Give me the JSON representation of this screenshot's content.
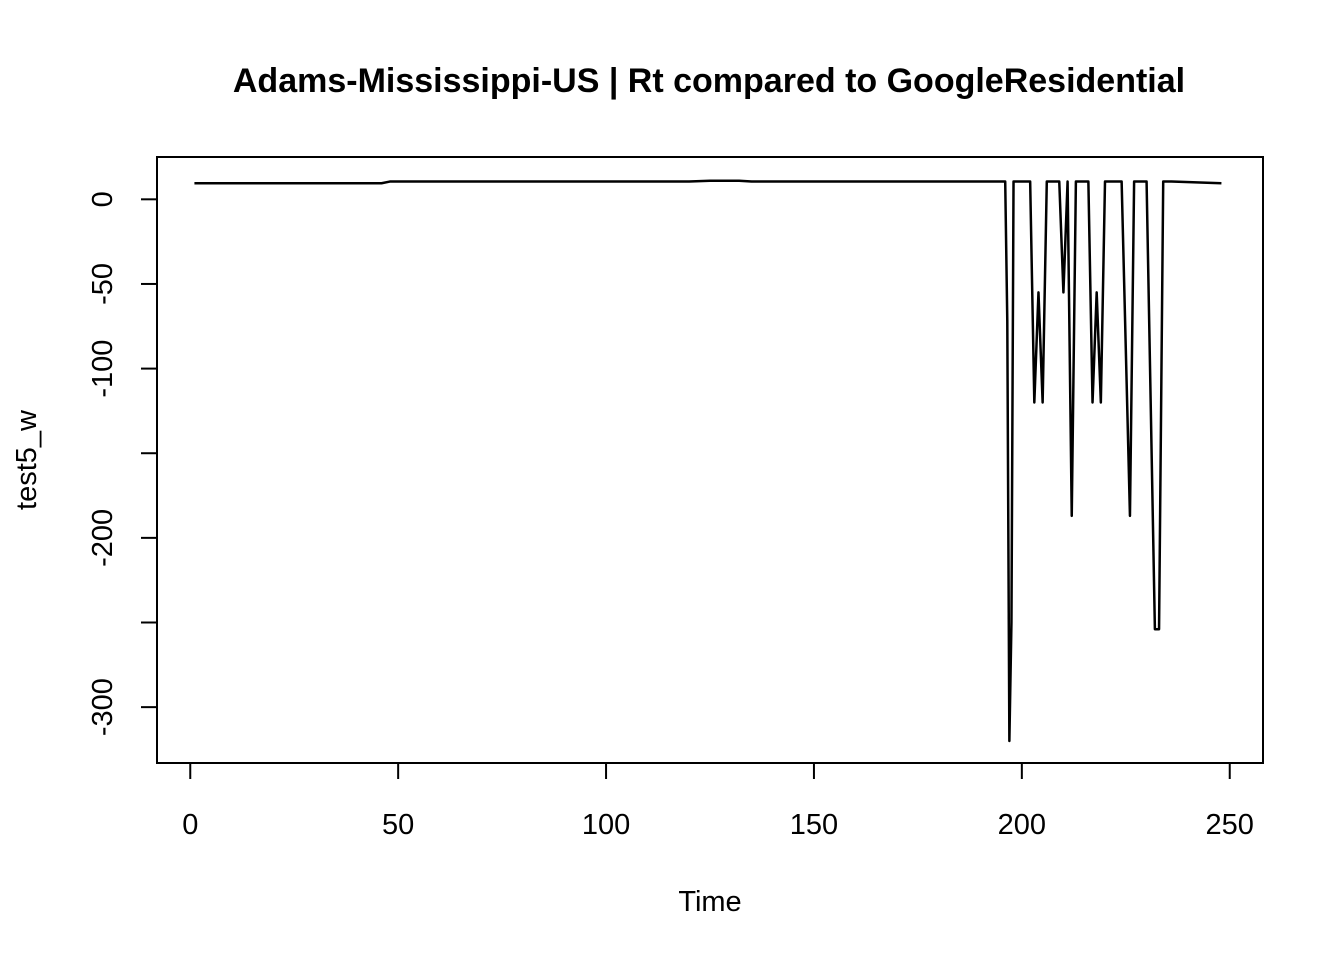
{
  "chart_data": {
    "type": "line",
    "title": "Adams-Mississippi-US | Rt compared to GoogleResidential",
    "xlabel": "Time",
    "ylabel": "test5_w",
    "xlim": [
      -8,
      258
    ],
    "ylim": [
      -333,
      25
    ],
    "xticks": [
      0,
      50,
      100,
      150,
      200,
      250
    ],
    "yticks": [
      0,
      -50,
      -100,
      -150,
      -200,
      -250,
      -300
    ],
    "ytick_labels": [
      "0",
      "-50",
      "-100",
      "",
      "-200",
      "",
      "-300"
    ],
    "grid": false,
    "legend": "none",
    "line_color": "#000000",
    "series": [
      {
        "x": [
          1,
          46,
          48,
          120,
          125,
          132,
          135,
          196,
          196.5,
          197,
          197.5,
          198,
          202,
          203,
          204,
          205,
          206,
          209,
          210,
          211,
          212,
          213,
          216,
          217,
          218,
          219,
          220,
          223,
          224,
          226,
          227,
          229,
          230,
          232,
          233,
          234,
          235,
          236,
          248
        ],
        "values": [
          9.5,
          9.5,
          10.5,
          10.5,
          11,
          11,
          10.5,
          10.5,
          -72,
          -320,
          -250,
          10.5,
          10.5,
          -120,
          -55,
          -120,
          10.5,
          10.5,
          -55,
          10.5,
          -187,
          10.5,
          10.5,
          -120,
          -55,
          -120,
          10.5,
          10.5,
          10.5,
          -187,
          10.5,
          10.5,
          10.5,
          -254,
          -254,
          10.5,
          10.5,
          10.5,
          9.5
        ]
      }
    ]
  }
}
